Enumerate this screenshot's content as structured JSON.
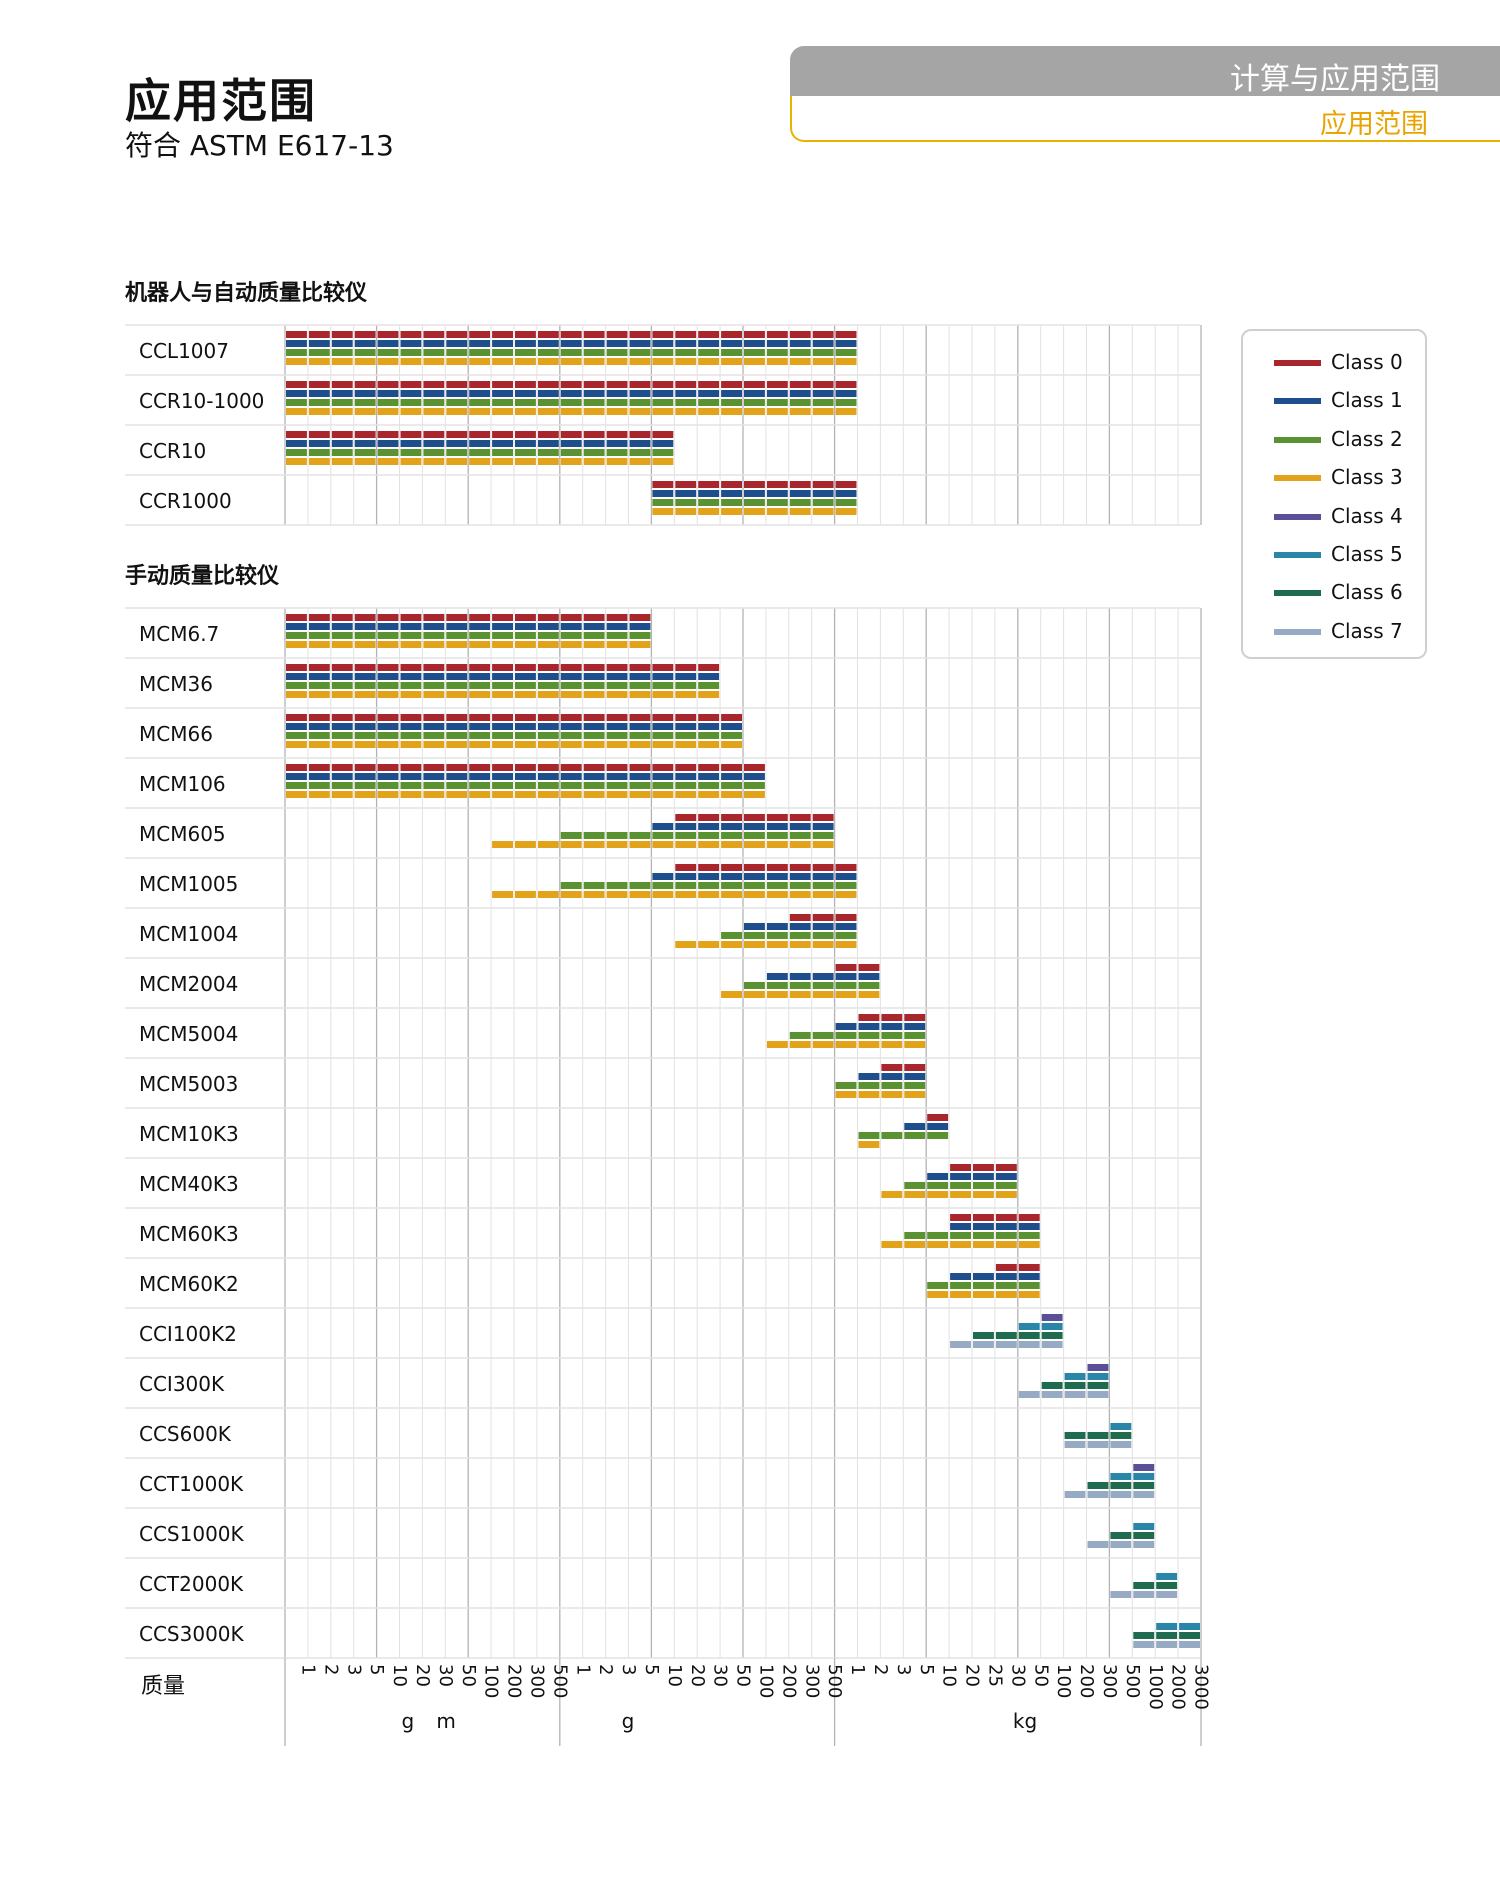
{
  "header": {
    "title": "应用范围",
    "subtitle": "符合 ASTM E617-13",
    "tab_top": "计算与应用范围",
    "tab_bottom": "应用范围"
  },
  "sections": {
    "robotic": "机器人与自动质量比较仪",
    "manual": "手动质量比较仪"
  },
  "colors": {
    "Class 0": "#a8262c",
    "Class 1": "#1f4e8c",
    "Class 2": "#5a9231",
    "Class 3": "#e2a21a",
    "Class 4": "#5b4f97",
    "Class 5": "#2a86a8",
    "Class 6": "#1f6b4f",
    "Class 7": "#97aac3"
  },
  "chart_data": {
    "type": "bar",
    "description_style": "range bars per instrument and accuracy class over a categorical mass axis",
    "legend": [
      "Class 0",
      "Class 1",
      "Class 2",
      "Class 3",
      "Class 4",
      "Class 5",
      "Class 6",
      "Class 7"
    ],
    "legend_position": "right",
    "ylabel": "质量",
    "x_ticks": [
      "1",
      "2",
      "3",
      "5",
      "10",
      "20",
      "30",
      "50",
      "100",
      "200",
      "300",
      "500",
      "1",
      "2",
      "3",
      "5",
      "10",
      "20",
      "30",
      "50",
      "100",
      "200",
      "300",
      "500",
      "1",
      "2",
      "3",
      "5",
      "10",
      "20",
      "25",
      "30",
      "50",
      "100",
      "200",
      "300",
      "500",
      "1000",
      "2000",
      "3000"
    ],
    "x_groups": [
      {
        "label": "m",
        "from": 0,
        "to": 11
      },
      {
        "label": "g",
        "from": 12,
        "to": 23
      },
      {
        "label": "kg",
        "from": 24,
        "to": 39
      }
    ],
    "x_group_extra_label": "g",
    "instruments": [
      {
        "name": "CCL1007",
        "section": "robotic",
        "ranges": [
          {
            "class": "Class 0",
            "from": 0,
            "to": 25
          },
          {
            "class": "Class 1",
            "from": 0,
            "to": 25
          },
          {
            "class": "Class 2",
            "from": 0,
            "to": 25
          },
          {
            "class": "Class 3",
            "from": 0,
            "to": 25
          }
        ]
      },
      {
        "name": "CCR10-1000",
        "section": "robotic",
        "ranges": [
          {
            "class": "Class 0",
            "from": 0,
            "to": 25
          },
          {
            "class": "Class 1",
            "from": 0,
            "to": 25
          },
          {
            "class": "Class 2",
            "from": 0,
            "to": 25
          },
          {
            "class": "Class 3",
            "from": 0,
            "to": 25
          }
        ]
      },
      {
        "name": "CCR10",
        "section": "robotic",
        "ranges": [
          {
            "class": "Class 0",
            "from": 0,
            "to": 17
          },
          {
            "class": "Class 1",
            "from": 0,
            "to": 17
          },
          {
            "class": "Class 2",
            "from": 0,
            "to": 17
          },
          {
            "class": "Class 3",
            "from": 0,
            "to": 17
          }
        ]
      },
      {
        "name": "CCR1000",
        "section": "robotic",
        "ranges": [
          {
            "class": "Class 0",
            "from": 16,
            "to": 25
          },
          {
            "class": "Class 1",
            "from": 16,
            "to": 25
          },
          {
            "class": "Class 2",
            "from": 16,
            "to": 25
          },
          {
            "class": "Class 3",
            "from": 16,
            "to": 25
          }
        ]
      },
      {
        "name": "MCM6.7",
        "section": "manual",
        "ranges": [
          {
            "class": "Class 0",
            "from": 0,
            "to": 16
          },
          {
            "class": "Class 1",
            "from": 0,
            "to": 16
          },
          {
            "class": "Class 2",
            "from": 0,
            "to": 16
          },
          {
            "class": "Class 3",
            "from": 0,
            "to": 16
          }
        ]
      },
      {
        "name": "MCM36",
        "section": "manual",
        "ranges": [
          {
            "class": "Class 0",
            "from": 0,
            "to": 19
          },
          {
            "class": "Class 1",
            "from": 0,
            "to": 19
          },
          {
            "class": "Class 2",
            "from": 0,
            "to": 19
          },
          {
            "class": "Class 3",
            "from": 0,
            "to": 19
          }
        ]
      },
      {
        "name": "MCM66",
        "section": "manual",
        "ranges": [
          {
            "class": "Class 0",
            "from": 0,
            "to": 20
          },
          {
            "class": "Class 1",
            "from": 0,
            "to": 20
          },
          {
            "class": "Class 2",
            "from": 0,
            "to": 20
          },
          {
            "class": "Class 3",
            "from": 0,
            "to": 20
          }
        ]
      },
      {
        "name": "MCM106",
        "section": "manual",
        "ranges": [
          {
            "class": "Class 0",
            "from": 0,
            "to": 21
          },
          {
            "class": "Class 1",
            "from": 0,
            "to": 21
          },
          {
            "class": "Class 2",
            "from": 0,
            "to": 21
          },
          {
            "class": "Class 3",
            "from": 0,
            "to": 21
          }
        ]
      },
      {
        "name": "MCM605",
        "section": "manual",
        "ranges": [
          {
            "class": "Class 0",
            "from": 17,
            "to": 24
          },
          {
            "class": "Class 1",
            "from": 16,
            "to": 24
          },
          {
            "class": "Class 2",
            "from": 12,
            "to": 24
          },
          {
            "class": "Class 3",
            "from": 9,
            "to": 24
          }
        ]
      },
      {
        "name": "MCM1005",
        "section": "manual",
        "ranges": [
          {
            "class": "Class 0",
            "from": 17,
            "to": 25
          },
          {
            "class": "Class 1",
            "from": 16,
            "to": 25
          },
          {
            "class": "Class 2",
            "from": 12,
            "to": 25
          },
          {
            "class": "Class 3",
            "from": 9,
            "to": 25
          }
        ]
      },
      {
        "name": "MCM1004",
        "section": "manual",
        "ranges": [
          {
            "class": "Class 0",
            "from": 22,
            "to": 25
          },
          {
            "class": "Class 1",
            "from": 20,
            "to": 25
          },
          {
            "class": "Class 2",
            "from": 19,
            "to": 25
          },
          {
            "class": "Class 3",
            "from": 17,
            "to": 25
          }
        ]
      },
      {
        "name": "MCM2004",
        "section": "manual",
        "ranges": [
          {
            "class": "Class 0",
            "from": 24,
            "to": 26
          },
          {
            "class": "Class 1",
            "from": 21,
            "to": 26
          },
          {
            "class": "Class 2",
            "from": 20,
            "to": 26
          },
          {
            "class": "Class 3",
            "from": 19,
            "to": 26
          }
        ]
      },
      {
        "name": "MCM5004",
        "section": "manual",
        "ranges": [
          {
            "class": "Class 0",
            "from": 25,
            "to": 28
          },
          {
            "class": "Class 1",
            "from": 24,
            "to": 28
          },
          {
            "class": "Class 2",
            "from": 22,
            "to": 28
          },
          {
            "class": "Class 3",
            "from": 21,
            "to": 28
          }
        ]
      },
      {
        "name": "MCM5003",
        "section": "manual",
        "ranges": [
          {
            "class": "Class 0",
            "from": 26,
            "to": 28
          },
          {
            "class": "Class 1",
            "from": 25,
            "to": 28
          },
          {
            "class": "Class 2",
            "from": 24,
            "to": 28
          },
          {
            "class": "Class 3",
            "from": 24,
            "to": 28
          }
        ]
      },
      {
        "name": "MCM10K3",
        "section": "manual",
        "ranges": [
          {
            "class": "Class 0",
            "from": 28,
            "to": 29
          },
          {
            "class": "Class 1",
            "from": 27,
            "to": 29
          },
          {
            "class": "Class 2",
            "from": 25,
            "to": 29
          },
          {
            "class": "Class 3",
            "from": 25,
            "to": 26
          }
        ]
      },
      {
        "name": "MCM40K3",
        "section": "manual",
        "ranges": [
          {
            "class": "Class 0",
            "from": 29,
            "to": 32
          },
          {
            "class": "Class 1",
            "from": 28,
            "to": 32
          },
          {
            "class": "Class 2",
            "from": 27,
            "to": 32
          },
          {
            "class": "Class 3",
            "from": 26,
            "to": 32
          }
        ]
      },
      {
        "name": "MCM60K3",
        "section": "manual",
        "ranges": [
          {
            "class": "Class 0",
            "from": 29,
            "to": 33
          },
          {
            "class": "Class 1",
            "from": 29,
            "to": 33
          },
          {
            "class": "Class 2",
            "from": 27,
            "to": 33
          },
          {
            "class": "Class 3",
            "from": 26,
            "to": 33
          }
        ]
      },
      {
        "name": "MCM60K2",
        "section": "manual",
        "ranges": [
          {
            "class": "Class 0",
            "from": 31,
            "to": 33
          },
          {
            "class": "Class 1",
            "from": 29,
            "to": 33
          },
          {
            "class": "Class 2",
            "from": 28,
            "to": 33
          },
          {
            "class": "Class 3",
            "from": 28,
            "to": 33
          }
        ]
      },
      {
        "name": "CCI100K2",
        "section": "manual",
        "ranges": [
          {
            "class": "Class 4",
            "from": 33,
            "to": 34
          },
          {
            "class": "Class 5",
            "from": 32,
            "to": 34
          },
          {
            "class": "Class 6",
            "from": 30,
            "to": 34
          },
          {
            "class": "Class 7",
            "from": 29,
            "to": 34
          }
        ]
      },
      {
        "name": "CCI300K",
        "section": "manual",
        "ranges": [
          {
            "class": "Class 4",
            "from": 35,
            "to": 36
          },
          {
            "class": "Class 5",
            "from": 34,
            "to": 36
          },
          {
            "class": "Class 6",
            "from": 33,
            "to": 36
          },
          {
            "class": "Class 7",
            "from": 32,
            "to": 36
          }
        ]
      },
      {
        "name": "CCS600K",
        "section": "manual",
        "ranges": [
          {
            "class": "Class 5",
            "from": 36,
            "to": 37
          },
          {
            "class": "Class 6",
            "from": 34,
            "to": 37
          },
          {
            "class": "Class 7",
            "from": 34,
            "to": 37
          }
        ]
      },
      {
        "name": "CCT1000K",
        "section": "manual",
        "ranges": [
          {
            "class": "Class 4",
            "from": 37,
            "to": 38
          },
          {
            "class": "Class 5",
            "from": 36,
            "to": 38
          },
          {
            "class": "Class 6",
            "from": 35,
            "to": 38
          },
          {
            "class": "Class 7",
            "from": 34,
            "to": 38
          }
        ]
      },
      {
        "name": "CCS1000K",
        "section": "manual",
        "ranges": [
          {
            "class": "Class 5",
            "from": 37,
            "to": 38
          },
          {
            "class": "Class 6",
            "from": 36,
            "to": 38
          },
          {
            "class": "Class 7",
            "from": 35,
            "to": 38
          }
        ]
      },
      {
        "name": "CCT2000K",
        "section": "manual",
        "ranges": [
          {
            "class": "Class 5",
            "from": 38,
            "to": 39
          },
          {
            "class": "Class 6",
            "from": 37,
            "to": 39
          },
          {
            "class": "Class 7",
            "from": 36,
            "to": 39
          }
        ]
      },
      {
        "name": "CCS3000K",
        "section": "manual",
        "ranges": [
          {
            "class": "Class 5",
            "from": 38,
            "to": 40
          },
          {
            "class": "Class 6",
            "from": 37,
            "to": 40
          },
          {
            "class": "Class 7",
            "from": 37,
            "to": 40
          }
        ]
      }
    ]
  }
}
